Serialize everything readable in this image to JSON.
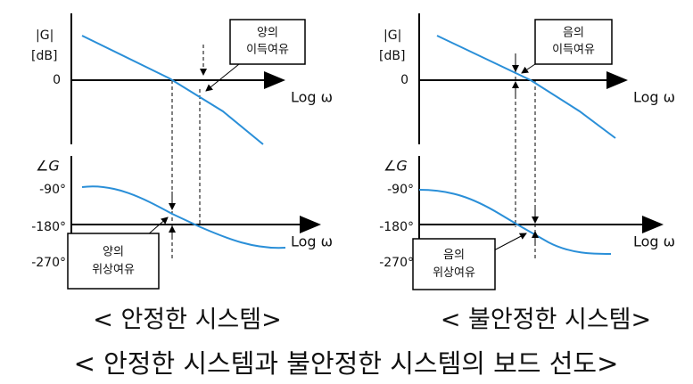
{
  "panels": [
    {
      "gain": {
        "y_label": [
          "|G|",
          "[dB]"
        ],
        "zero": "0",
        "x_label": "Log ω",
        "margin_box": [
          "양의",
          "이득여유"
        ]
      },
      "phase": {
        "y_label": "∠G",
        "ticks": [
          "-90°",
          "-180°",
          "-270°"
        ],
        "x_label": "Log ω",
        "margin_box": [
          "양의",
          "위상여유"
        ]
      },
      "title": "< 안정한 시스템>"
    },
    {
      "gain": {
        "y_label": [
          "|G|",
          "[dB]"
        ],
        "zero": "0",
        "x_label": "Log ω",
        "margin_box": [
          "음의",
          "이득여유"
        ]
      },
      "phase": {
        "y_label": "∠G",
        "ticks": [
          "-90°",
          "-180°",
          "-270°"
        ],
        "x_label": "Log ω",
        "margin_box": [
          "음의",
          "위상여유"
        ]
      },
      "title": "< 불안정한 시스템>"
    }
  ],
  "caption": "< 안정한 시스템과 불안정한 시스템의 보드 선도>"
}
